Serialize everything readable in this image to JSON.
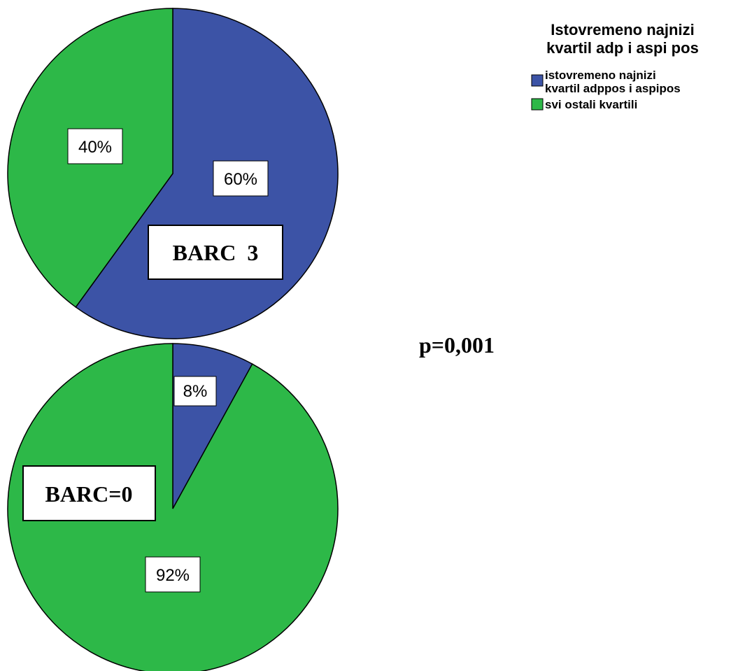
{
  "legend": {
    "title_lines": [
      "Istovremeno najnizi",
      "kvartil adp i aspi pos"
    ],
    "items": [
      {
        "lines": [
          "istovremeno najnizi",
          "kvartil adppos i aspipos"
        ],
        "color": "#3c53a6"
      },
      {
        "lines": [
          "svi ostali kvartili"
        ],
        "color": "#2db848"
      }
    ]
  },
  "p_value": "p=0,001",
  "chart_data": [
    {
      "type": "pie",
      "label": "BARC  3",
      "slices": [
        {
          "name": "istovremeno najnizi kvartil adppos i aspipos",
          "value": 60,
          "label": "60%",
          "color": "#3c53a6"
        },
        {
          "name": "svi ostali kvartili",
          "value": 40,
          "label": "40%",
          "color": "#2db848"
        }
      ]
    },
    {
      "type": "pie",
      "label": "BARC=0",
      "slices": [
        {
          "name": "istovremeno najnizi kvartil adppos i aspipos",
          "value": 8,
          "label": "8%",
          "color": "#3c53a6"
        },
        {
          "name": "svi ostali kvartili",
          "value": 92,
          "label": "92%",
          "color": "#2db848"
        }
      ]
    }
  ]
}
